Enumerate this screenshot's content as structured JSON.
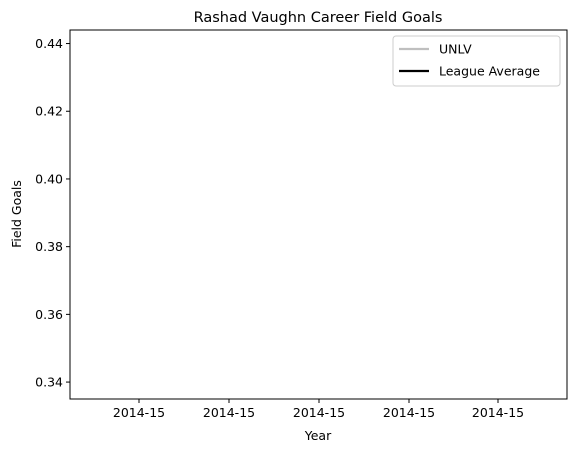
{
  "chart_data": {
    "type": "line",
    "title": "Rashad Vaughn Career Field Goals",
    "xlabel": "Year",
    "ylabel": "Field Goals",
    "x_ticks": [
      "2014-15",
      "2014-15",
      "2014-15",
      "2014-15",
      "2014-15"
    ],
    "y_ticks": [
      "0.34",
      "0.36",
      "0.38",
      "0.40",
      "0.42",
      "0.44"
    ],
    "ylim": [
      0.335,
      0.444
    ],
    "grid": false,
    "legend_position": "top-right",
    "series": [
      {
        "name": "UNLV",
        "color": "#bfbfbf",
        "x": [],
        "y": []
      },
      {
        "name": "League Average",
        "color": "#000000",
        "x": [],
        "y": []
      }
    ]
  }
}
